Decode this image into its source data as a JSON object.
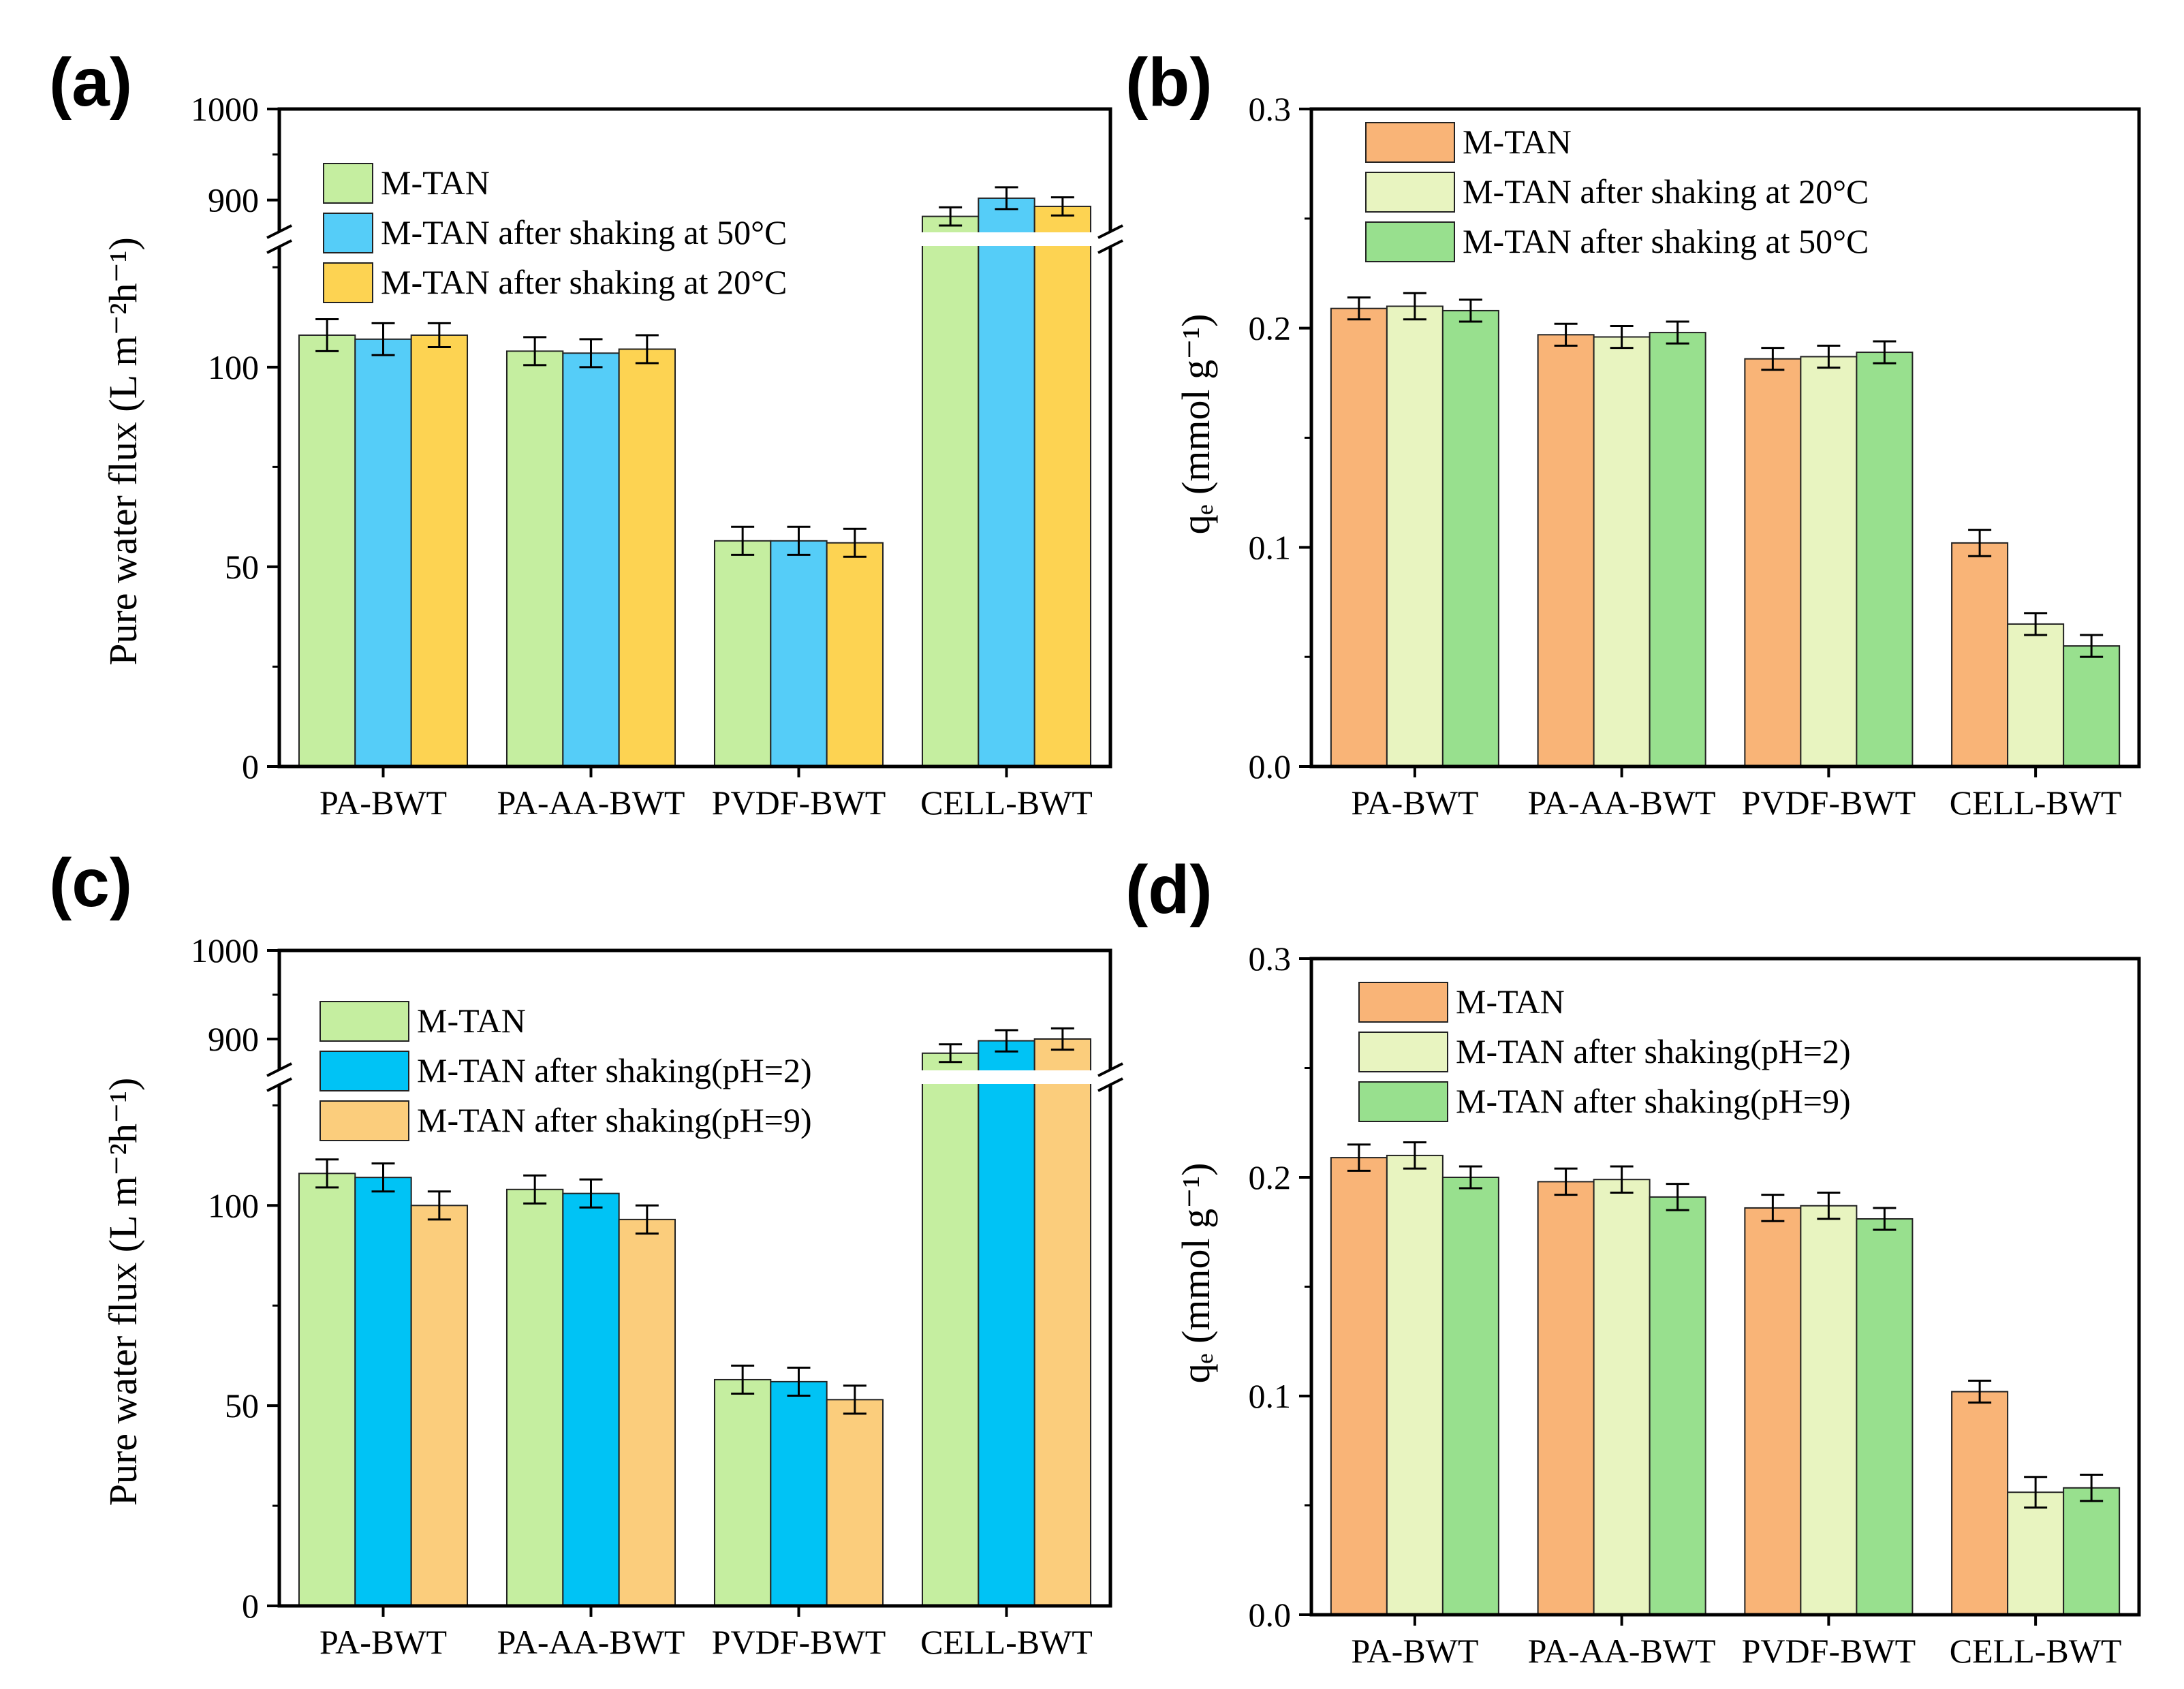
{
  "figure": {
    "panels": [
      "(a)",
      "(b)",
      "(c)",
      "(d)"
    ]
  },
  "colors": {
    "green": "#c5eea0",
    "blue_a": "#55cdf8",
    "blue_c": "#00c3f5",
    "yellow": "#fdd352",
    "light_orange": "#fbcd7c",
    "orange": "#f9b477",
    "pale": "#e8f4c0",
    "mint": "#98e08e",
    "error_bar": "#000000"
  },
  "chart_data": [
    {
      "panel": "(a)",
      "type": "bar",
      "ylabel": "Pure water flux (L m⁻²h⁻¹)",
      "categories": [
        "PA-BWT",
        "PA-AA-BWT",
        "PVDF-BWT",
        "CELL-BWT"
      ],
      "axis_break": {
        "lower": [
          0,
          130
        ],
        "upper": [
          860,
          1000
        ]
      },
      "ylim": [
        0,
        1000
      ],
      "lower_ticks": [
        "0",
        "50",
        "100"
      ],
      "upper_ticks": [
        "900",
        "1000"
      ],
      "legend_position": "top-left",
      "series": [
        {
          "name": "M-TAN",
          "color": "#c5eea0",
          "values": [
            108,
            104,
            56.5,
            882
          ],
          "errors": [
            4,
            3.5,
            3.5,
            10
          ]
        },
        {
          "name": "M-TAN after shaking at 50°C",
          "color": "#55cdf8",
          "values": [
            107,
            103.5,
            56.5,
            902
          ],
          "errors": [
            4,
            3.5,
            3.5,
            12
          ]
        },
        {
          "name": "M-TAN after shaking at 20°C",
          "color": "#fdd352",
          "values": [
            108,
            104.5,
            56,
            893
          ],
          "errors": [
            3,
            3.5,
            3.5,
            10
          ]
        }
      ]
    },
    {
      "panel": "(b)",
      "type": "bar",
      "ylabel": "qₑ (mmol g⁻¹)",
      "categories": [
        "PA-BWT",
        "PA-AA-BWT",
        "PVDF-BWT",
        "CELL-BWT"
      ],
      "ylim": [
        0,
        0.3
      ],
      "ticks": [
        "0.0",
        "0.1",
        "0.2",
        "0.3"
      ],
      "legend_position": "top-left",
      "series": [
        {
          "name": "M-TAN",
          "color": "#f9b477",
          "values": [
            0.209,
            0.197,
            0.186,
            0.102
          ],
          "errors": [
            0.005,
            0.005,
            0.005,
            0.006
          ]
        },
        {
          "name": "M-TAN after shaking at 20°C",
          "color": "#e8f4c0",
          "values": [
            0.21,
            0.196,
            0.187,
            0.065
          ],
          "errors": [
            0.006,
            0.005,
            0.005,
            0.005
          ]
        },
        {
          "name": "M-TAN after shaking at 50°C",
          "color": "#98e08e",
          "values": [
            0.208,
            0.198,
            0.189,
            0.055
          ],
          "errors": [
            0.005,
            0.005,
            0.005,
            0.005
          ]
        }
      ]
    },
    {
      "panel": "(c)",
      "type": "bar",
      "ylabel": "Pure water flux (L m⁻²h⁻¹)",
      "categories": [
        "PA-BWT",
        "PA-AA-BWT",
        "PVDF-BWT",
        "CELL-BWT"
      ],
      "axis_break": {
        "lower": [
          0,
          130
        ],
        "upper": [
          860,
          1000
        ]
      },
      "ylim": [
        0,
        1000
      ],
      "lower_ticks": [
        "0",
        "50",
        "100"
      ],
      "upper_ticks": [
        "900",
        "1000"
      ],
      "legend_position": "top-left",
      "series": [
        {
          "name": "M-TAN",
          "color": "#c5eea0",
          "values": [
            108,
            104,
            56.5,
            884
          ],
          "errors": [
            3.5,
            3.5,
            3.5,
            10
          ]
        },
        {
          "name": "M-TAN after shaking(pH=2)",
          "color": "#00c3f5",
          "values": [
            107,
            103,
            56,
            898
          ],
          "errors": [
            3.5,
            3.5,
            3.5,
            12
          ]
        },
        {
          "name": "M-TAN after shaking(pH=9)",
          "color": "#fbcd7c",
          "values": [
            100,
            96.5,
            51.5,
            900
          ],
          "errors": [
            3.5,
            3.5,
            3.5,
            12
          ]
        }
      ]
    },
    {
      "panel": "(d)",
      "type": "bar",
      "ylabel": "qₑ (mmol g⁻¹)",
      "categories": [
        "PA-BWT",
        "PA-AA-BWT",
        "PVDF-BWT",
        "CELL-BWT"
      ],
      "ylim": [
        0,
        0.3
      ],
      "ticks": [
        "0.0",
        "0.1",
        "0.2",
        "0.3"
      ],
      "legend_position": "top-left",
      "series": [
        {
          "name": "M-TAN",
          "color": "#f9b477",
          "values": [
            0.209,
            0.198,
            0.186,
            0.102
          ],
          "errors": [
            0.006,
            0.006,
            0.006,
            0.005
          ]
        },
        {
          "name": "M-TAN after shaking(pH=2)",
          "color": "#e8f4c0",
          "values": [
            0.21,
            0.199,
            0.187,
            0.056
          ],
          "errors": [
            0.006,
            0.006,
            0.006,
            0.007
          ]
        },
        {
          "name": "M-TAN after shaking(pH=9)",
          "color": "#98e08e",
          "values": [
            0.2,
            0.191,
            0.181,
            0.058
          ],
          "errors": [
            0.005,
            0.006,
            0.005,
            0.006
          ]
        }
      ]
    }
  ]
}
